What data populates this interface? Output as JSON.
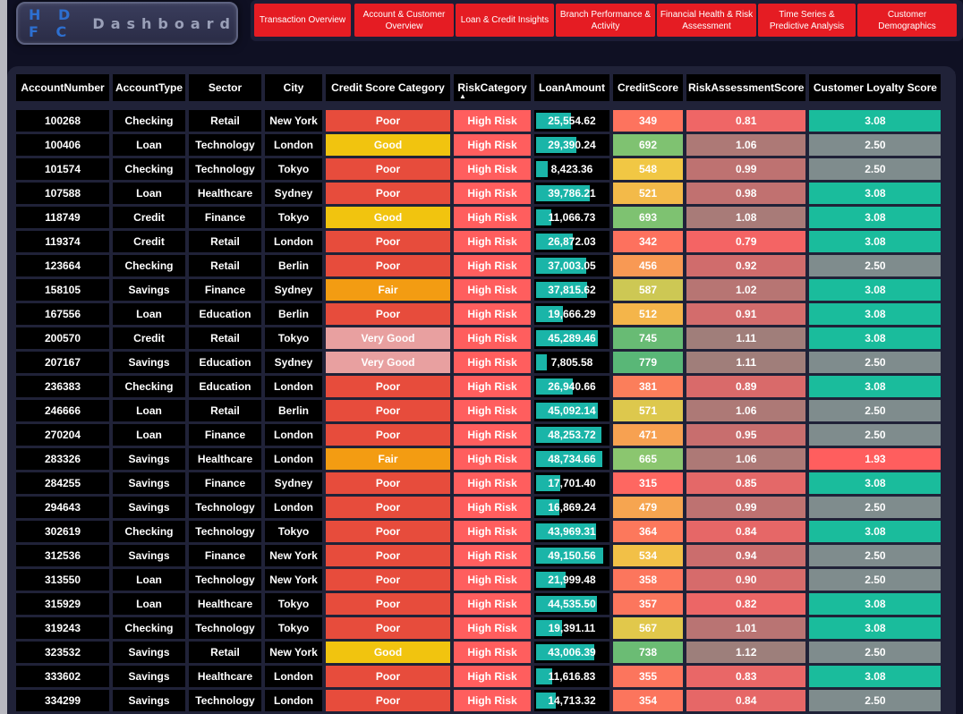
{
  "logo": {
    "brand": "H D F C",
    "rest": "Dashboard"
  },
  "nav": [
    "Transaction Overview",
    "Account & Customer Overview",
    "Loan & Credit Insights",
    "Branch Performance & Activity",
    "Financial Health & Risk Assessment",
    "Time Series & Predictive Analysis",
    "Customer Demographics"
  ],
  "columns": [
    "AccountNumber",
    "AccountType",
    "Sector",
    "City",
    "Credit Score Category",
    "RiskCategory",
    "LoanAmount",
    "CreditScore",
    "RiskAssessmentScore",
    "Customer Loyalty Score"
  ],
  "sort_indicator": "▲",
  "max_loan": 50000,
  "colors": {
    "category": {
      "Poor": "#e74c3c",
      "Good": "#f1c40f",
      "Fair": "#f39c12",
      "Very Good": "#e8a0a0"
    },
    "risk": "#ff5e5e",
    "loyalty_high": "#1abc9c",
    "loyalty_mid": "#7f8c8d",
    "loyalty_low": "#ff5e5e",
    "loan_bar": "#1ab5a8"
  },
  "rows": [
    [
      "100268",
      "Checking",
      "Retail",
      "New York",
      "Poor",
      "High Risk",
      "25,554.62",
      "349",
      "0.81",
      "3.08"
    ],
    [
      "100406",
      "Loan",
      "Technology",
      "London",
      "Good",
      "High Risk",
      "29,390.24",
      "692",
      "1.06",
      "2.50"
    ],
    [
      "101574",
      "Checking",
      "Technology",
      "Tokyo",
      "Poor",
      "High Risk",
      "8,423.36",
      "548",
      "0.99",
      "2.50"
    ],
    [
      "107588",
      "Loan",
      "Healthcare",
      "Sydney",
      "Poor",
      "High Risk",
      "39,786.21",
      "521",
      "0.98",
      "3.08"
    ],
    [
      "118749",
      "Credit",
      "Finance",
      "Tokyo",
      "Good",
      "High Risk",
      "11,066.73",
      "693",
      "1.08",
      "3.08"
    ],
    [
      "119374",
      "Credit",
      "Retail",
      "London",
      "Poor",
      "High Risk",
      "26,872.03",
      "342",
      "0.79",
      "3.08"
    ],
    [
      "123664",
      "Checking",
      "Retail",
      "Berlin",
      "Poor",
      "High Risk",
      "37,003.05",
      "456",
      "0.92",
      "2.50"
    ],
    [
      "158105",
      "Savings",
      "Finance",
      "Sydney",
      "Fair",
      "High Risk",
      "37,815.62",
      "587",
      "1.02",
      "3.08"
    ],
    [
      "167556",
      "Loan",
      "Education",
      "Berlin",
      "Poor",
      "High Risk",
      "19,666.29",
      "512",
      "0.91",
      "3.08"
    ],
    [
      "200570",
      "Credit",
      "Retail",
      "Tokyo",
      "Very Good",
      "High Risk",
      "45,289.46",
      "745",
      "1.11",
      "3.08"
    ],
    [
      "207167",
      "Savings",
      "Education",
      "Sydney",
      "Very Good",
      "High Risk",
      "7,805.58",
      "779",
      "1.11",
      "2.50"
    ],
    [
      "236383",
      "Checking",
      "Education",
      "London",
      "Poor",
      "High Risk",
      "26,940.66",
      "381",
      "0.89",
      "3.08"
    ],
    [
      "246666",
      "Loan",
      "Retail",
      "Berlin",
      "Poor",
      "High Risk",
      "45,092.14",
      "571",
      "1.06",
      "2.50"
    ],
    [
      "270204",
      "Loan",
      "Finance",
      "London",
      "Poor",
      "High Risk",
      "48,253.72",
      "471",
      "0.95",
      "2.50"
    ],
    [
      "283326",
      "Savings",
      "Healthcare",
      "London",
      "Fair",
      "High Risk",
      "48,734.66",
      "665",
      "1.06",
      "1.93"
    ],
    [
      "284255",
      "Savings",
      "Finance",
      "Sydney",
      "Poor",
      "High Risk",
      "17,701.40",
      "315",
      "0.85",
      "3.08"
    ],
    [
      "294643",
      "Savings",
      "Technology",
      "London",
      "Poor",
      "High Risk",
      "16,869.24",
      "479",
      "0.99",
      "2.50"
    ],
    [
      "302619",
      "Checking",
      "Technology",
      "Tokyo",
      "Poor",
      "High Risk",
      "43,969.31",
      "364",
      "0.84",
      "3.08"
    ],
    [
      "312536",
      "Savings",
      "Finance",
      "New York",
      "Poor",
      "High Risk",
      "49,150.56",
      "534",
      "0.94",
      "2.50"
    ],
    [
      "313550",
      "Loan",
      "Technology",
      "New York",
      "Poor",
      "High Risk",
      "21,999.48",
      "358",
      "0.90",
      "2.50"
    ],
    [
      "315929",
      "Loan",
      "Healthcare",
      "Tokyo",
      "Poor",
      "High Risk",
      "44,535.50",
      "357",
      "0.82",
      "3.08"
    ],
    [
      "319243",
      "Checking",
      "Technology",
      "Tokyo",
      "Poor",
      "High Risk",
      "19,391.11",
      "567",
      "1.01",
      "3.08"
    ],
    [
      "323532",
      "Savings",
      "Retail",
      "New York",
      "Good",
      "High Risk",
      "43,006.39",
      "738",
      "1.12",
      "2.50"
    ],
    [
      "333602",
      "Savings",
      "Healthcare",
      "London",
      "Poor",
      "High Risk",
      "11,616.83",
      "355",
      "0.83",
      "3.08"
    ],
    [
      "334299",
      "Savings",
      "Technology",
      "London",
      "Poor",
      "High Risk",
      "14,713.32",
      "354",
      "0.84",
      "2.50"
    ]
  ]
}
